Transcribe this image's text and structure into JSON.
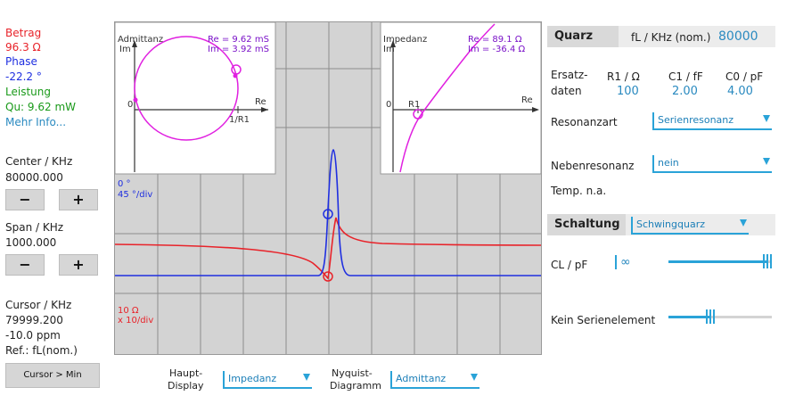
{
  "left": {
    "betrag_label": "Betrag",
    "betrag_value": "96.3 Ω",
    "phase_label": "Phase",
    "phase_value": "-22.2 °",
    "leistung_label": "Leistung",
    "leistung_value": "Qu: 9.62 mW",
    "mehr_info": "Mehr Info...",
    "center_label": "Center / KHz",
    "center_value": "80000.000",
    "minus": "−",
    "plus": "+",
    "span_label": "Span / KHz",
    "span_value": "1000.000",
    "cursor_label": "Cursor / KHz",
    "cursor_value": "79999.200",
    "cursor_ppm": "-10.0 ppm",
    "cursor_ref": "Ref.: fL(nom.)",
    "cursor_min_button": "Cursor > Min"
  },
  "plot": {
    "admittanz": {
      "title": "Admittanz",
      "im": "Im",
      "re_axis": "Re",
      "zero": "0",
      "r1": "1/R1",
      "re_val": "Re = 9.62 mS",
      "im_val": "Im = 3.92 mS"
    },
    "impedanz": {
      "title": "Impedanz",
      "im": "Im",
      "re_axis": "Re",
      "zero": "0",
      "r1": "R1",
      "re_val": "Re = 89.1 Ω",
      "im_val": "Im = -36.4 Ω"
    },
    "phase_scale_a": "0 °",
    "phase_scale_b": "45 °/div",
    "mag_scale_a": "10 Ω",
    "mag_scale_b": "x 10/div"
  },
  "bottom": {
    "haupt_label_1": "Haupt-",
    "haupt_label_2": "Display",
    "haupt_value": "Impedanz",
    "nyquist_label_1": "Nyquist-",
    "nyquist_label_2": "Diagramm",
    "nyquist_value": "Admittanz"
  },
  "right": {
    "quarz_header": "Quarz",
    "fl_label": "fL / KHz (nom.)",
    "fl_value": "80000",
    "ersatz_1": "Ersatz-",
    "ersatz_2": "daten",
    "r1_label": "R1 / Ω",
    "c1_label": "C1 / fF",
    "c0_label": "C0 / pF",
    "r1_value": "100",
    "c1_value": "2.00",
    "c0_value": "4.00",
    "resonanzart_label": "Resonanzart",
    "resonanzart_value": "Serienresonanz",
    "nebenresonanz_label": "Nebenresonanz",
    "nebenresonanz_value": "nein",
    "temp": "Temp. n.a.",
    "schaltung_header": "Schaltung",
    "schaltung_value": "Schwingquarz",
    "cl_label": "CL / pF",
    "cl_value": "∞",
    "cl_slider_level": 1.0,
    "kein_label": "Kein Serienelement",
    "kein_slider_level": 0.4
  },
  "colors": {
    "red": "#e8232a",
    "blue": "#1f2fe0",
    "green": "#1a9a1a",
    "teal": "#2a8ac0",
    "magenta": "#e020e0",
    "accent": "#2aa3d8"
  }
}
